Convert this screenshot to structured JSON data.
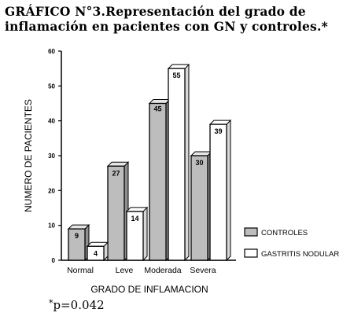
{
  "title_line1": "GRÁFICO N°3.Representación del grado de",
  "title_line2": "inflamación en pacientes con GN y controles.*",
  "footnote_mark": "*",
  "footnote_text": "p=0.042",
  "chart_data": {
    "type": "bar",
    "categories": [
      "Normal",
      "Leve",
      "Moderada",
      "Severa"
    ],
    "series": [
      {
        "name": "CONTROLES",
        "values": [
          9,
          27,
          45,
          30
        ],
        "fill": "#bdbdbd"
      },
      {
        "name": "GASTRITIS NODULAR",
        "values": [
          4,
          14,
          55,
          39
        ],
        "fill": "#ffffff"
      }
    ],
    "xlabel": "GRADO DE INFLAMACION",
    "ylabel": "NUMERO DE PACIENTES",
    "ylim": [
      0,
      60
    ],
    "yticks": [
      0,
      10,
      20,
      30,
      40,
      50,
      60
    ],
    "grid": false,
    "legend_position": "right",
    "bar_style": "3d"
  }
}
